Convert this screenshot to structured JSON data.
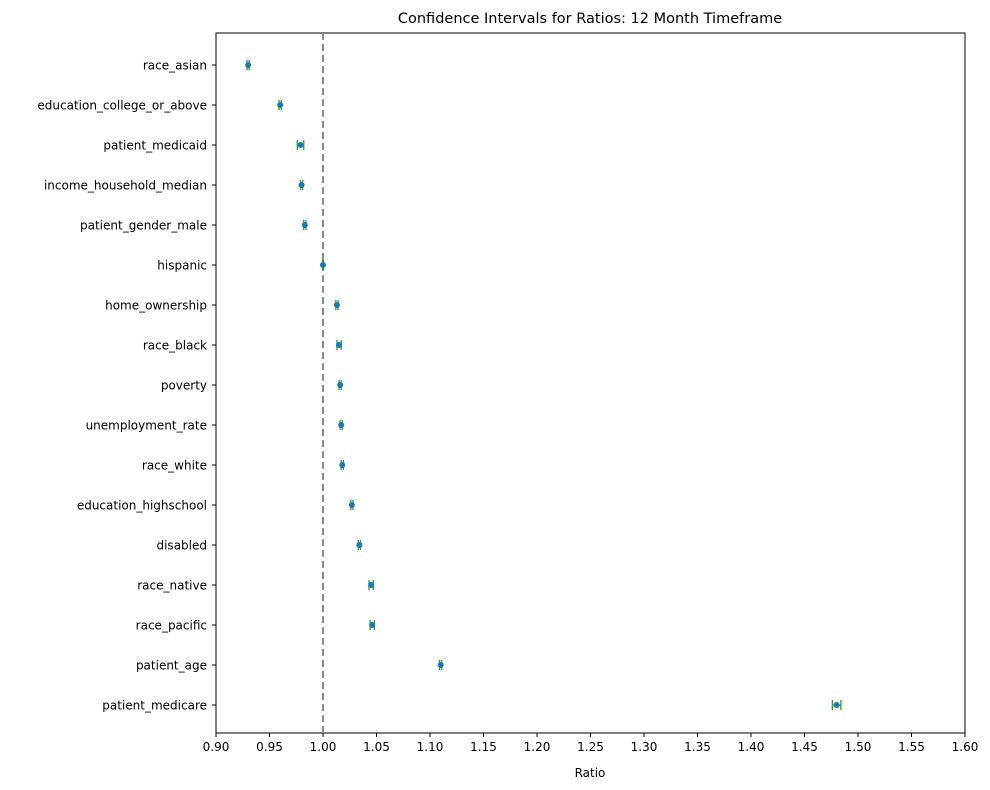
{
  "chart_data": {
    "type": "scatter",
    "title": "Confidence Intervals for Ratios: 12 Month Timeframe",
    "xlabel": "Ratio",
    "ylabel": "",
    "xlim": [
      0.9,
      1.6
    ],
    "xticks": [
      "0.90",
      "0.95",
      "1.00",
      "1.05",
      "1.10",
      "1.15",
      "1.20",
      "1.25",
      "1.30",
      "1.35",
      "1.40",
      "1.45",
      "1.50",
      "1.55",
      "1.60"
    ],
    "reference_line": 1.0,
    "grid": false,
    "colors": {
      "point": "#1f77b4",
      "interval": "#2ca02c",
      "reference": "#808080"
    },
    "series": [
      {
        "name": "race_asian",
        "value": 0.93,
        "lower": 0.929,
        "upper": 0.931
      },
      {
        "name": "education_college_or_above",
        "value": 0.96,
        "lower": 0.959,
        "upper": 0.961
      },
      {
        "name": "patient_medicaid",
        "value": 0.979,
        "lower": 0.976,
        "upper": 0.982
      },
      {
        "name": "income_household_median",
        "value": 0.98,
        "lower": 0.979,
        "upper": 0.981
      },
      {
        "name": "patient_gender_male",
        "value": 0.983,
        "lower": 0.982,
        "upper": 0.984
      },
      {
        "name": "hispanic",
        "value": 1.0,
        "lower": 0.9995,
        "upper": 1.0005
      },
      {
        "name": "home_ownership",
        "value": 1.013,
        "lower": 1.012,
        "upper": 1.014
      },
      {
        "name": "race_black",
        "value": 1.015,
        "lower": 1.013,
        "upper": 1.017
      },
      {
        "name": "poverty",
        "value": 1.016,
        "lower": 1.015,
        "upper": 1.017
      },
      {
        "name": "unemployment_rate",
        "value": 1.017,
        "lower": 1.016,
        "upper": 1.018
      },
      {
        "name": "race_white",
        "value": 1.018,
        "lower": 1.017,
        "upper": 1.019
      },
      {
        "name": "education_highschool",
        "value": 1.027,
        "lower": 1.026,
        "upper": 1.028
      },
      {
        "name": "disabled",
        "value": 1.034,
        "lower": 1.033,
        "upper": 1.035
      },
      {
        "name": "race_native",
        "value": 1.045,
        "lower": 1.043,
        "upper": 1.047
      },
      {
        "name": "race_pacific",
        "value": 1.046,
        "lower": 1.044,
        "upper": 1.048
      },
      {
        "name": "patient_age",
        "value": 1.11,
        "lower": 1.109,
        "upper": 1.111
      },
      {
        "name": "patient_medicare",
        "value": 1.48,
        "lower": 1.476,
        "upper": 1.484
      }
    ]
  }
}
